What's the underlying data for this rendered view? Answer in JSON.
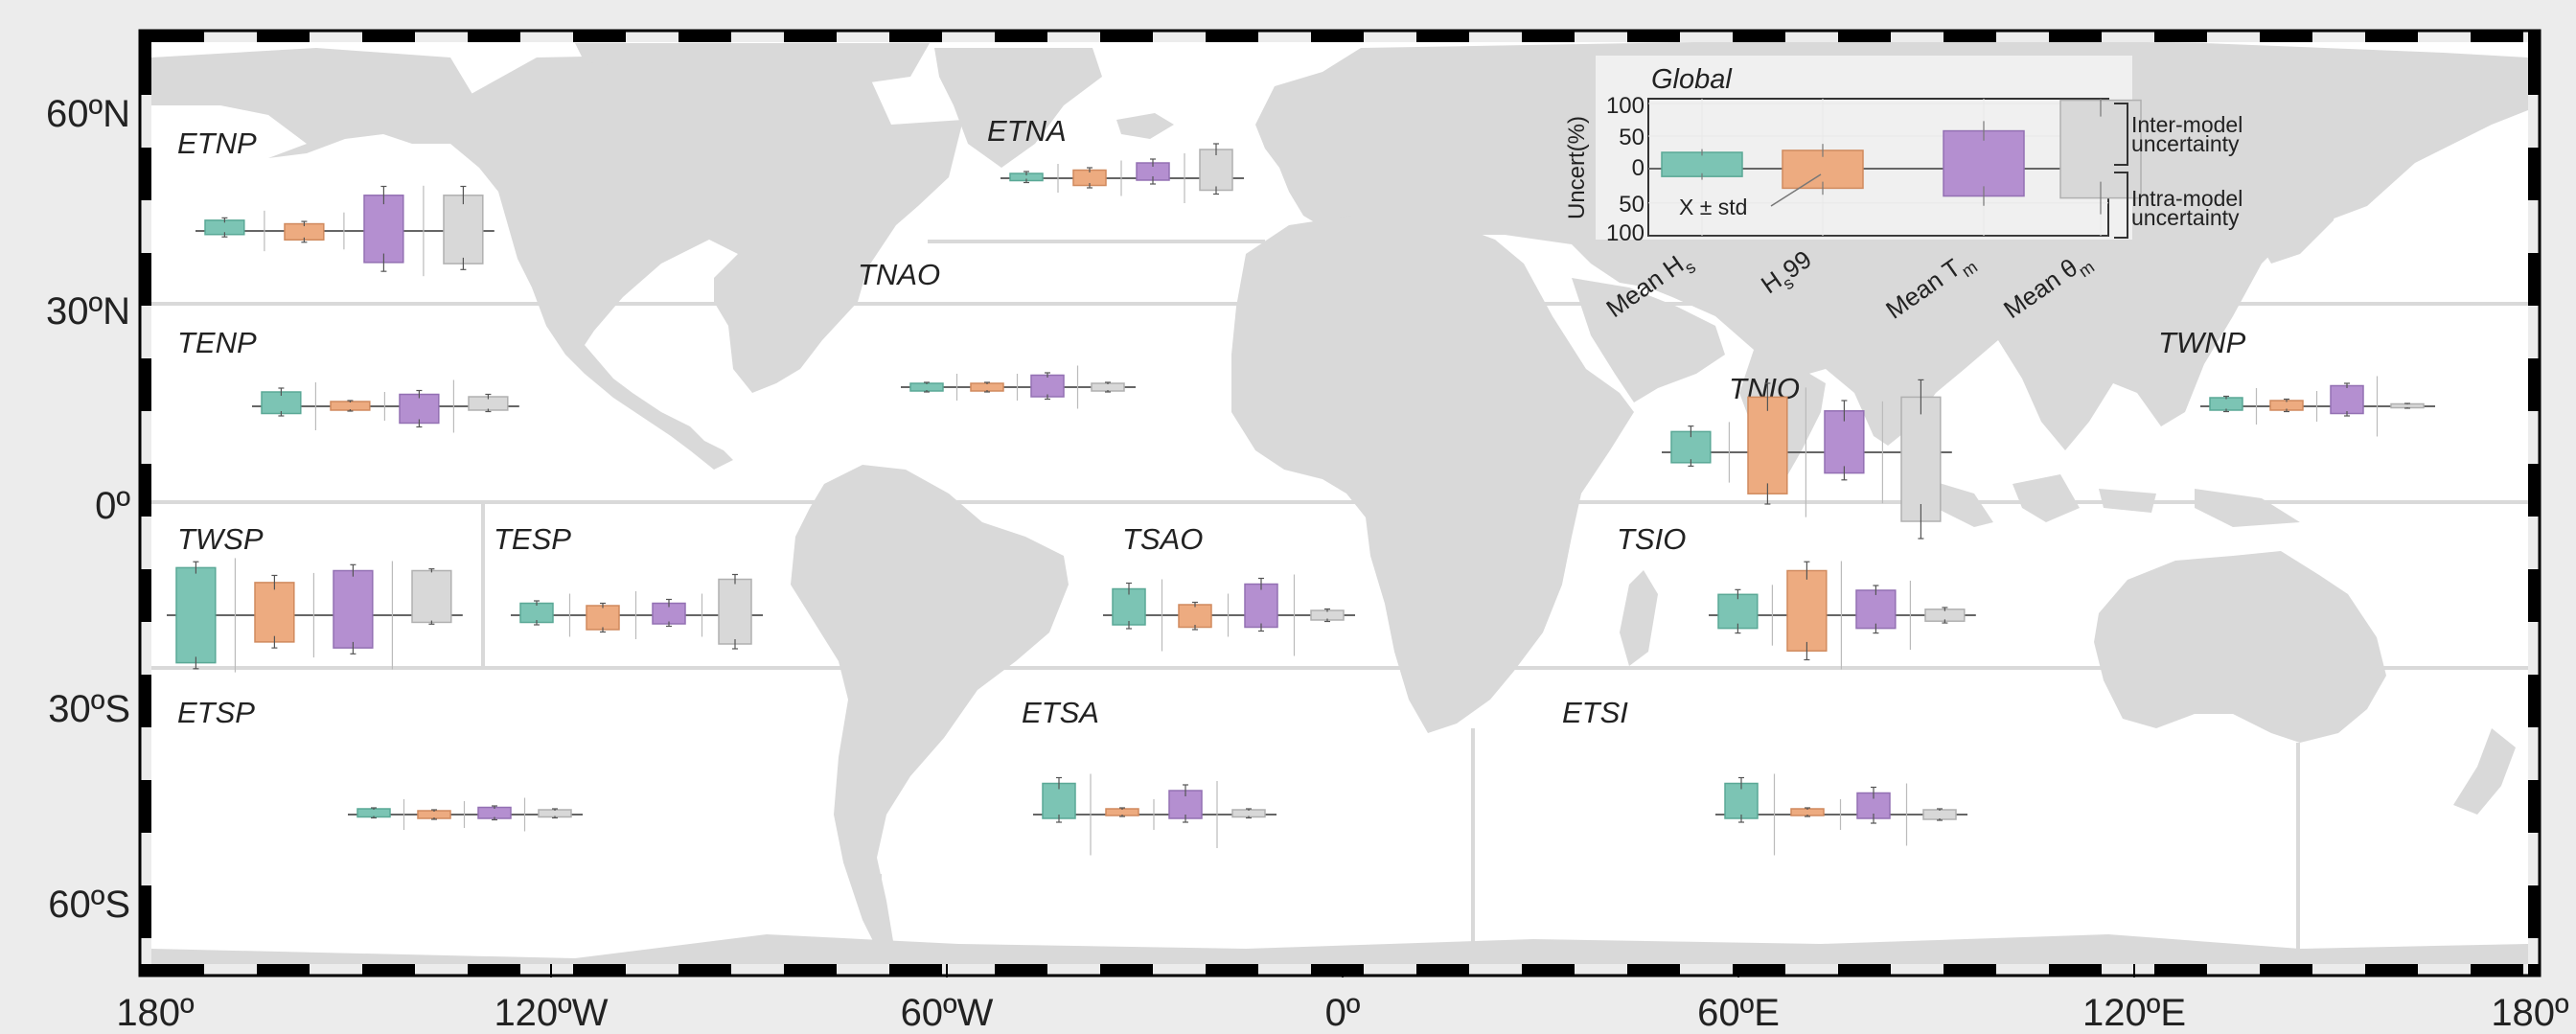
{
  "colors": {
    "hs_mean": "#7cc4b4",
    "hs99": "#edab80",
    "tm_mean": "#b48fd0",
    "theta_mean": "#d8d8d8",
    "land": "#d9d9d9",
    "ocean": "#ffffff",
    "frame": "#000000"
  },
  "axes": {
    "x_ticks": [
      "180º",
      "120ºW",
      "60ºW",
      "0º",
      "60ºE",
      "120ºE",
      "180º"
    ],
    "y_ticks": [
      "60ºN",
      "30ºN",
      "0º",
      "30ºS",
      "60ºS"
    ]
  },
  "regions": [
    {
      "label": "ETNP",
      "boxes": [
        {
          "lo": -6,
          "hi": 18,
          "w_lo": -4,
          "w_hi": 4
        },
        {
          "lo": -15,
          "hi": 12,
          "w_lo": -4,
          "w_hi": 4
        },
        {
          "lo": -53,
          "hi": 60,
          "w_lo": -15,
          "w_hi": 15
        },
        {
          "lo": -55,
          "hi": 60,
          "w_lo": -10,
          "w_hi": 15
        }
      ]
    },
    {
      "label": "ETNA",
      "boxes": [
        {
          "lo": -5,
          "hi": 10,
          "w_lo": -4,
          "w_hi": 4
        },
        {
          "lo": -15,
          "hi": 17,
          "w_lo": -5,
          "w_hi": 5
        },
        {
          "lo": -4,
          "hi": 32,
          "w_lo": -8,
          "w_hi": 8
        },
        {
          "lo": -25,
          "hi": 60,
          "w_lo": -8,
          "w_hi": 12
        }
      ]
    },
    {
      "label": "TNAO",
      "boxes": [
        {
          "lo": -8,
          "hi": 8,
          "w_lo": -2,
          "w_hi": 2
        },
        {
          "lo": -8,
          "hi": 8,
          "w_lo": -2,
          "w_hi": 2
        },
        {
          "lo": -20,
          "hi": 25,
          "w_lo": -5,
          "w_hi": 5
        },
        {
          "lo": -8,
          "hi": 8,
          "w_lo": -2,
          "w_hi": 2
        }
      ]
    },
    {
      "label": "TENP",
      "boxes": [
        {
          "lo": -15,
          "hi": 30,
          "w_lo": -5,
          "w_hi": 8
        },
        {
          "lo": -8,
          "hi": 10,
          "w_lo": -2,
          "w_hi": 2
        },
        {
          "lo": -35,
          "hi": 25,
          "w_lo": -8,
          "w_hi": 8
        },
        {
          "lo": -8,
          "hi": 20,
          "w_lo": -3,
          "w_hi": 5
        }
      ]
    },
    {
      "label": "TWNP",
      "boxes": [
        {
          "lo": -8,
          "hi": 18,
          "w_lo": -3,
          "w_hi": 3
        },
        {
          "lo": -8,
          "hi": 12,
          "w_lo": -3,
          "w_hi": 3
        },
        {
          "lo": -15,
          "hi": 43,
          "w_lo": -5,
          "w_hi": 5
        },
        {
          "lo": -3,
          "hi": 5,
          "w_lo": -1,
          "w_hi": 1
        }
      ]
    },
    {
      "label": "TNIO",
      "boxes": [
        {
          "lo": -15,
          "hi": 30,
          "w_lo": -5,
          "w_hi": 8
        },
        {
          "lo": -60,
          "hi": 80,
          "w_lo": -15,
          "w_hi": 20
        },
        {
          "lo": -30,
          "hi": 60,
          "w_lo": -10,
          "w_hi": 15
        },
        {
          "lo": -100,
          "hi": 80,
          "w_lo": -25,
          "w_hi": 25
        }
      ]
    },
    {
      "label": "TWSP",
      "boxes": [
        {
          "lo": -80,
          "hi": 80,
          "w_lo": -10,
          "w_hi": 10
        },
        {
          "lo": -45,
          "hi": 55,
          "w_lo": -10,
          "w_hi": 12
        },
        {
          "lo": -55,
          "hi": 75,
          "w_lo": -10,
          "w_hi": 10
        },
        {
          "lo": -12,
          "hi": 75,
          "w_lo": -3,
          "w_hi": 3
        }
      ]
    },
    {
      "label": "TESP",
      "boxes": [
        {
          "lo": -15,
          "hi": 25,
          "w_lo": -5,
          "w_hi": 5
        },
        {
          "lo": -30,
          "hi": 20,
          "w_lo": -5,
          "w_hi": 5
        },
        {
          "lo": -18,
          "hi": 25,
          "w_lo": -5,
          "w_hi": 8
        },
        {
          "lo": -60,
          "hi": 75,
          "w_lo": -10,
          "w_hi": 10
        }
      ]
    },
    {
      "label": "TSAO",
      "boxes": [
        {
          "lo": -20,
          "hi": 55,
          "w_lo": -8,
          "w_hi": 12
        },
        {
          "lo": -25,
          "hi": 22,
          "w_lo": -5,
          "w_hi": 5
        },
        {
          "lo": -25,
          "hi": 65,
          "w_lo": -8,
          "w_hi": 12
        },
        {
          "lo": -10,
          "hi": 10,
          "w_lo": -3,
          "w_hi": 3
        }
      ]
    },
    {
      "label": "TSIO",
      "boxes": [
        {
          "lo": -22,
          "hi": 35,
          "w_lo": -8,
          "w_hi": 8
        },
        {
          "lo": -60,
          "hi": 75,
          "w_lo": -15,
          "w_hi": 15
        },
        {
          "lo": -22,
          "hi": 42,
          "w_lo": -8,
          "w_hi": 8
        },
        {
          "lo": -10,
          "hi": 10,
          "w_lo": -3,
          "w_hi": 3
        }
      ]
    },
    {
      "label": "ETSP",
      "boxes": [
        {
          "lo": -5,
          "hi": 12,
          "w_lo": -2,
          "w_hi": 2
        },
        {
          "lo": -8,
          "hi": 8,
          "w_lo": -2,
          "w_hi": 2
        },
        {
          "lo": -8,
          "hi": 15,
          "w_lo": -3,
          "w_hi": 3
        },
        {
          "lo": -5,
          "hi": 10,
          "w_lo": -2,
          "w_hi": 2
        }
      ]
    },
    {
      "label": "ETSA",
      "boxes": [
        {
          "lo": -8,
          "hi": 65,
          "w_lo": -8,
          "w_hi": 12
        },
        {
          "lo": -2,
          "hi": 12,
          "w_lo": -2,
          "w_hi": 2
        },
        {
          "lo": -8,
          "hi": 50,
          "w_lo": -8,
          "w_hi": 12
        },
        {
          "lo": -5,
          "hi": 10,
          "w_lo": -2,
          "w_hi": 2
        }
      ]
    },
    {
      "label": "ETSI",
      "boxes": [
        {
          "lo": -8,
          "hi": 65,
          "w_lo": -8,
          "w_hi": 12
        },
        {
          "lo": -2,
          "hi": 12,
          "w_lo": -2,
          "w_hi": 2
        },
        {
          "lo": -8,
          "hi": 45,
          "w_lo": -10,
          "w_hi": 12
        },
        {
          "lo": -10,
          "hi": 10,
          "w_lo": -2,
          "w_hi": 2
        }
      ]
    }
  ],
  "inset": {
    "title": "Global",
    "ylabel": "Uncert(%)",
    "yticks": [
      "100",
      "50",
      "0",
      "50",
      "100"
    ],
    "categories": [
      {
        "main": "Mean H",
        "sub": "s"
      },
      {
        "main": "H",
        "sub": "s",
        "suffix": "99"
      },
      {
        "main": "Mean T",
        "sub": "m"
      },
      {
        "main": "Mean θ",
        "sub": "m"
      }
    ],
    "boxes": [
      {
        "lo": -12,
        "hi": 25,
        "w_lo": -5,
        "w_hi": 5
      },
      {
        "lo": -30,
        "hi": 28,
        "w_lo": -10,
        "w_hi": 10
      },
      {
        "lo": -42,
        "hi": 58,
        "w_lo": -15,
        "w_hi": 15
      },
      {
        "lo": -45,
        "hi": 105,
        "w_lo": -25,
        "w_hi": 25
      }
    ],
    "annotation": "X ± std",
    "bracket_top": [
      "Inter-model",
      "uncertainty"
    ],
    "bracket_bottom": [
      "Intra-model",
      "uncertainty"
    ]
  }
}
